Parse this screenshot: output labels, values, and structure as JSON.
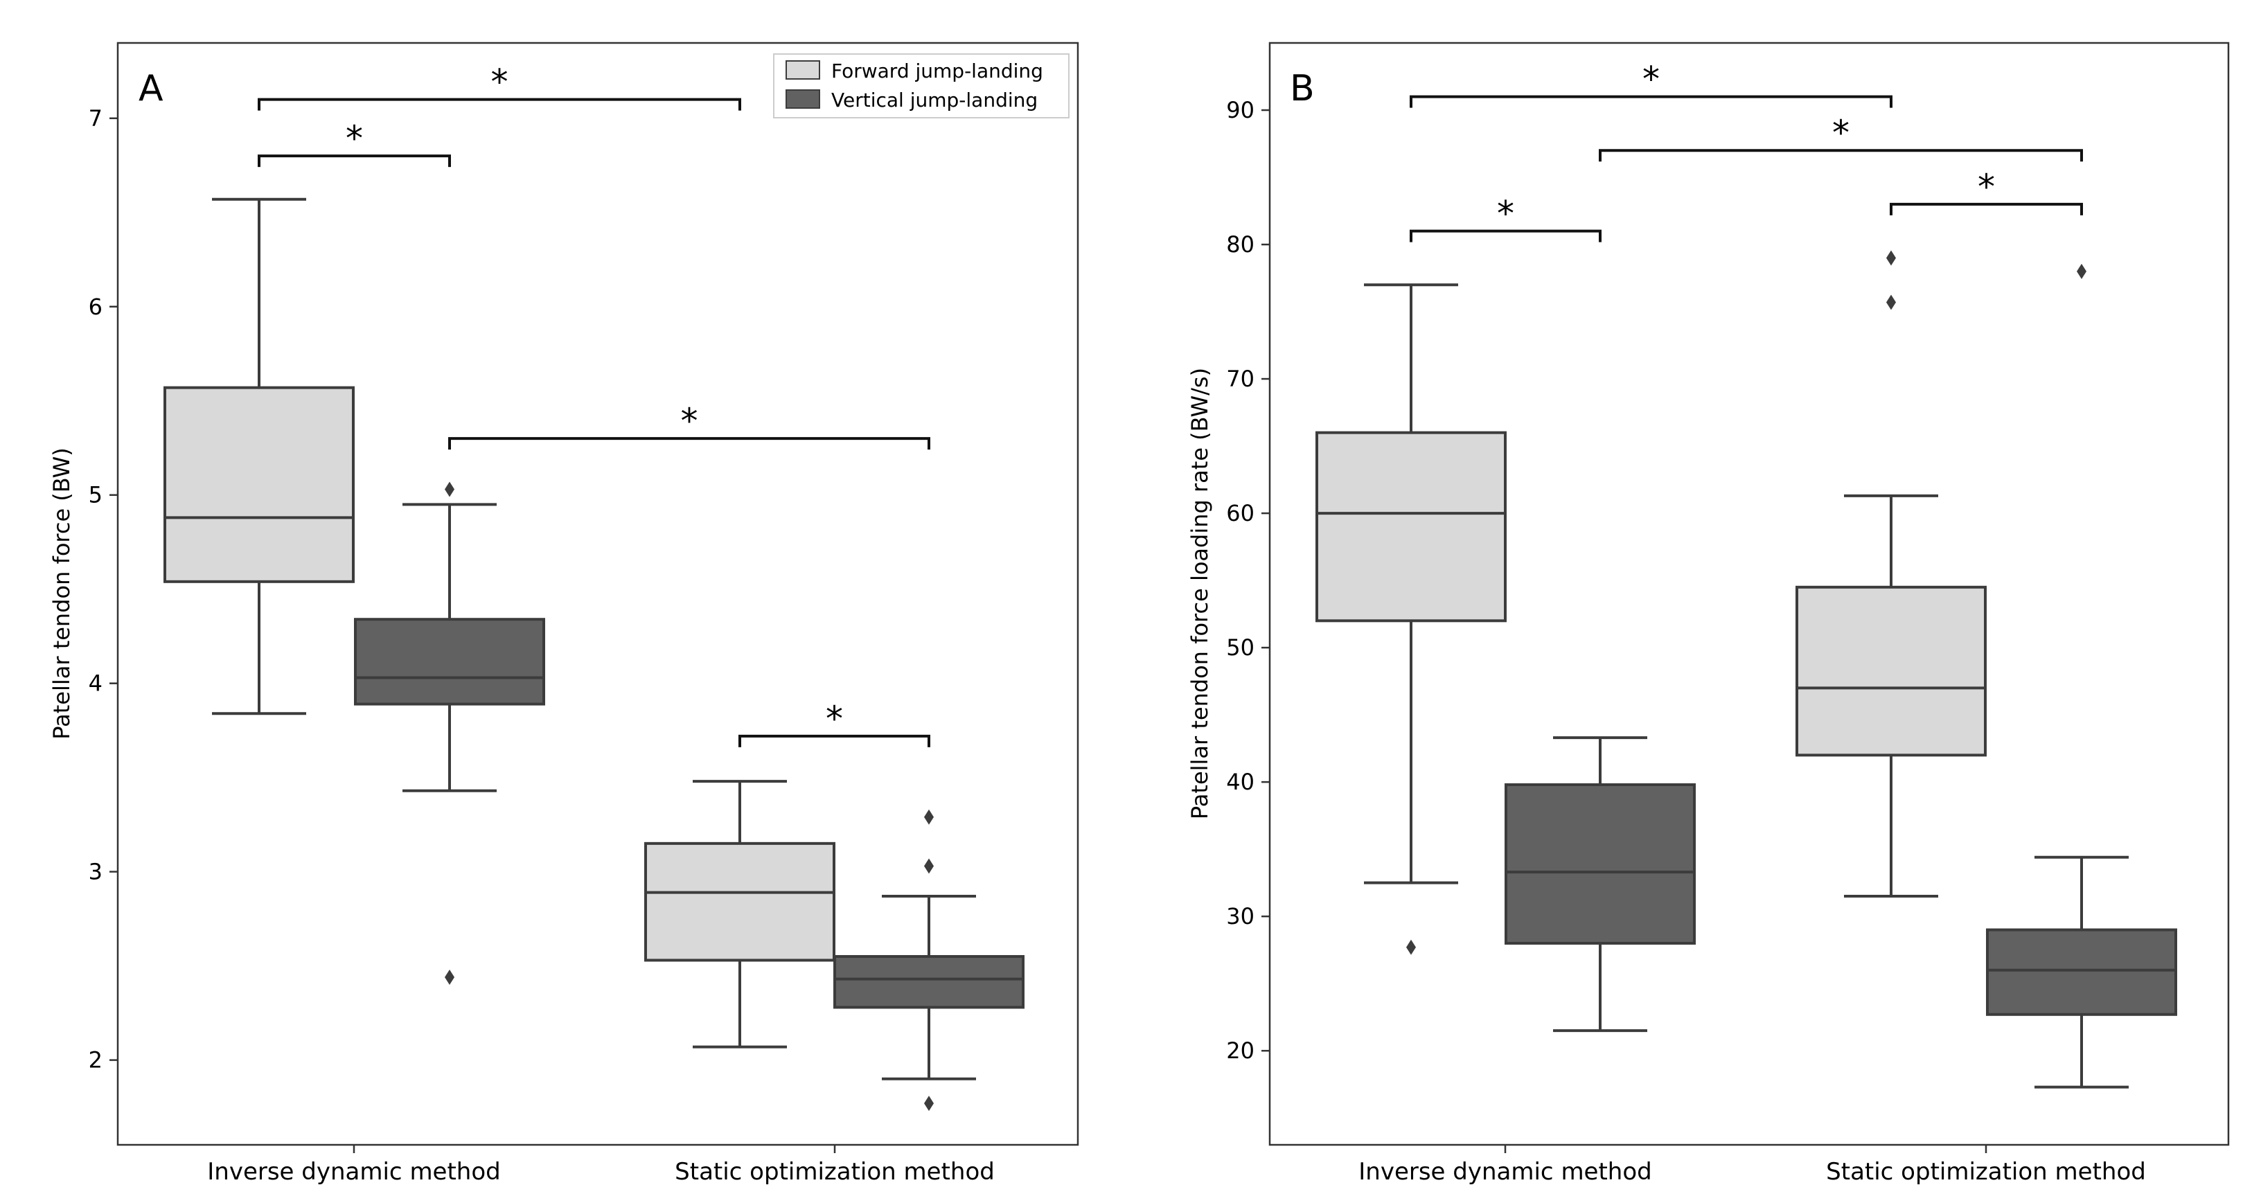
{
  "colors": {
    "forward": "#d9d9d9",
    "vertical": "#616161",
    "line": "#3c3c3c",
    "axis": "#333333"
  },
  "legend": {
    "forward_label": "Forward jump-landing",
    "vertical_label": "Vertical jump-landing"
  },
  "chart_data": [
    {
      "type": "box",
      "panel_label": "A",
      "ylabel": "Patellar tendon force (BW)",
      "ylim": [
        1.55,
        7.4
      ],
      "yticks": [
        "2",
        "3",
        "4",
        "5",
        "6",
        "7"
      ],
      "categories": [
        "Inverse dynamic method",
        "Static optimization method"
      ],
      "legend_position": "top-right",
      "series": [
        {
          "name": "Forward jump-landing",
          "boxes": [
            {
              "whislo": 3.84,
              "q1": 4.54,
              "med": 4.88,
              "q3": 5.57,
              "whishi": 6.57,
              "fliers": []
            },
            {
              "whislo": 2.07,
              "q1": 2.53,
              "med": 2.89,
              "q3": 3.15,
              "whishi": 3.48,
              "fliers": []
            }
          ]
        },
        {
          "name": "Vertical jump-landing",
          "boxes": [
            {
              "whislo": 3.43,
              "q1": 3.89,
              "med": 4.03,
              "q3": 4.34,
              "whishi": 4.95,
              "fliers": [
                5.03,
                2.44
              ]
            },
            {
              "whislo": 1.9,
              "q1": 2.28,
              "med": 2.43,
              "q3": 2.55,
              "whishi": 2.87,
              "fliers": [
                3.29,
                3.03,
                1.77
              ]
            }
          ]
        }
      ],
      "significance": [
        {
          "from": [
            0,
            0
          ],
          "to": [
            1,
            0
          ],
          "y": 7.1,
          "label": "*"
        },
        {
          "from": [
            0,
            0
          ],
          "to": [
            0,
            1
          ],
          "y": 6.8,
          "label": "*"
        },
        {
          "from": [
            0,
            1
          ],
          "to": [
            1,
            1
          ],
          "y": 5.3,
          "label": "*"
        },
        {
          "from": [
            1,
            0
          ],
          "to": [
            1,
            1
          ],
          "y": 3.72,
          "label": "*"
        }
      ]
    },
    {
      "type": "box",
      "panel_label": "B",
      "ylabel": "Patellar tendon force loading rate (BW/s)",
      "ylim": [
        13,
        95
      ],
      "yticks": [
        "20",
        "30",
        "40",
        "50",
        "60",
        "70",
        "80",
        "90"
      ],
      "categories": [
        "Inverse dynamic method",
        "Static optimization method"
      ],
      "series": [
        {
          "name": "Forward jump-landing",
          "boxes": [
            {
              "whislo": 32.5,
              "q1": 52,
              "med": 60,
              "q3": 66,
              "whishi": 77,
              "fliers": [
                27.7
              ]
            },
            {
              "whislo": 31.5,
              "q1": 42,
              "med": 47,
              "q3": 54.5,
              "whishi": 61.3,
              "fliers": [
                79,
                75.7
              ]
            }
          ]
        },
        {
          "name": "Vertical jump-landing",
          "boxes": [
            {
              "whislo": 21.5,
              "q1": 28,
              "med": 33.3,
              "q3": 39.8,
              "whishi": 43.3,
              "fliers": []
            },
            {
              "whislo": 17.3,
              "q1": 22.7,
              "med": 26,
              "q3": 29,
              "whishi": 34.4,
              "fliers": [
                78
              ]
            }
          ]
        }
      ],
      "significance": [
        {
          "from": [
            0,
            0
          ],
          "to": [
            1,
            0
          ],
          "y": 91,
          "label": "*"
        },
        {
          "from": [
            0,
            1
          ],
          "to": [
            1,
            1
          ],
          "y": 87,
          "label": "*"
        },
        {
          "from": [
            1,
            0
          ],
          "to": [
            1,
            1
          ],
          "y": 83,
          "label": "*"
        },
        {
          "from": [
            0,
            0
          ],
          "to": [
            0,
            1
          ],
          "y": 81,
          "label": "*"
        }
      ]
    }
  ]
}
